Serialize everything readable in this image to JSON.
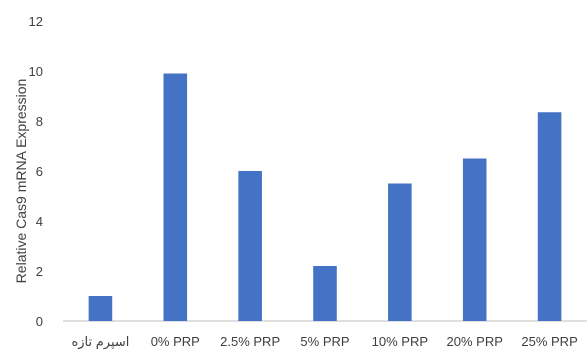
{
  "chart_data": {
    "type": "bar",
    "title": "",
    "xlabel": "",
    "ylabel": "Relative Cas9 mRNA Expression",
    "categories": [
      "اسپرم تازه",
      "0% PRP",
      "2.5% PRP",
      "5% PRP",
      "10% PRP",
      "20% PRP",
      "25% PRP"
    ],
    "values": [
      1.0,
      9.9,
      6.0,
      2.2,
      5.5,
      6.5,
      8.35
    ],
    "ylim": [
      0,
      12
    ],
    "yticks": [
      0,
      2,
      4,
      6,
      8,
      10,
      12
    ],
    "grid": false,
    "legend": "none",
    "bar_color": "#4472C4",
    "axis_color": "#BFBFBF"
  }
}
